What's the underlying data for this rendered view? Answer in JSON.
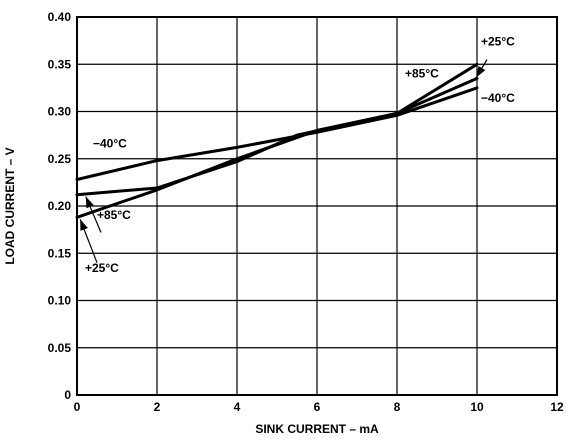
{
  "chart_data": {
    "type": "line",
    "title": "",
    "xlabel": "SINK CURRENT – mA",
    "ylabel": "LOAD CURRENT – V",
    "xlim": [
      0,
      12
    ],
    "ylim": [
      0,
      0.4
    ],
    "xticks": [
      "0",
      "2",
      "4",
      "6",
      "8",
      "10",
      "12"
    ],
    "yticks": [
      "0",
      "0.05",
      "0.10",
      "0.15",
      "0.20",
      "0.25",
      "0.30",
      "0.35",
      "0.40"
    ],
    "grid": true,
    "legend": "none",
    "series": [
      {
        "name": "+25°C",
        "x": [
          0,
          2,
          4,
          6,
          8,
          10
        ],
        "y": [
          0.188,
          0.217,
          0.25,
          0.28,
          0.298,
          0.335
        ]
      },
      {
        "name": "+85°C",
        "x": [
          0,
          2,
          4,
          5.5,
          8,
          10
        ],
        "y": [
          0.212,
          0.219,
          0.247,
          0.275,
          0.298,
          0.35
        ]
      },
      {
        "name": "−40°C",
        "x": [
          0,
          2,
          4,
          6,
          8,
          10
        ],
        "y": [
          0.228,
          0.248,
          0.262,
          0.278,
          0.296,
          0.325
        ]
      }
    ],
    "annotations": [
      {
        "text": "−40°C",
        "x": 0.4,
        "y": 0.262,
        "anchor": "start"
      },
      {
        "text": "+85°C",
        "x": 0.5,
        "y": 0.186,
        "anchor": "start"
      },
      {
        "text": "+25°C",
        "x": 0.2,
        "y": 0.13,
        "anchor": "start"
      },
      {
        "text": "+85°C",
        "x": 8.2,
        "y": 0.336,
        "anchor": "start"
      },
      {
        "text": "+25°C",
        "x": 10.1,
        "y": 0.37,
        "anchor": "start"
      },
      {
        "text": "−40°C",
        "x": 10.1,
        "y": 0.31,
        "anchor": "start"
      }
    ],
    "pointers": [
      {
        "from": [
          0.6,
          0.172
        ],
        "to": [
          0.22,
          0.21
        ]
      },
      {
        "from": [
          0.5,
          0.14
        ],
        "to": [
          0.08,
          0.186
        ]
      },
      {
        "from": [
          10.25,
          0.355
        ],
        "to": [
          9.98,
          0.336
        ]
      }
    ]
  }
}
